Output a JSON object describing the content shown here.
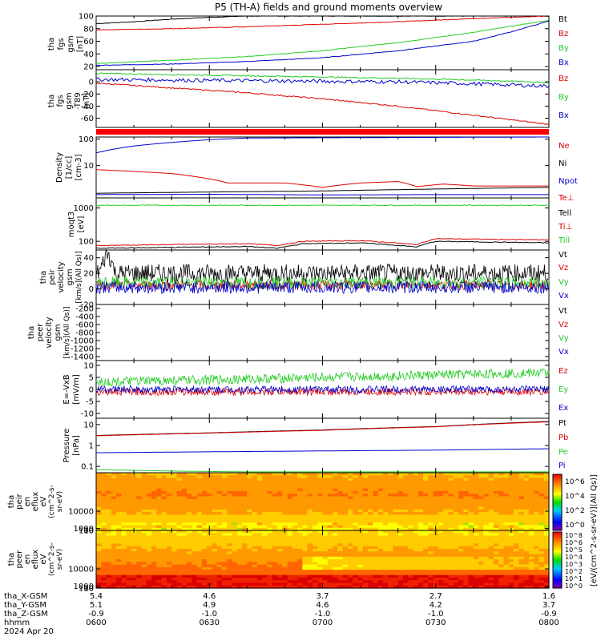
{
  "title": "P5 (TH-A) fields and ground moments overview",
  "colors": {
    "black": "#000000",
    "red": "#dd0000",
    "green": "#22cc22",
    "blue": "#0000cc",
    "status_bar": "#ff0000"
  },
  "chart_data": [
    {
      "type": "line",
      "panel": "fgs_gsm",
      "ylabel": [
        "tha",
        "fgs",
        "gsm",
        "[nT]"
      ],
      "ylim": [
        15,
        100
      ],
      "yticks": [
        20,
        40,
        60,
        80,
        100
      ],
      "series": [
        {
          "name": "Bt",
          "color": "#000000",
          "x": [
            0,
            10,
            20,
            30,
            40,
            48,
            60,
            120
          ],
          "y": [
            88,
            91,
            95,
            98,
            100,
            100,
            100,
            100
          ]
        },
        {
          "name": "Bz",
          "color": "#dd0000",
          "x": [
            0,
            20,
            40,
            60,
            80,
            100,
            120
          ],
          "y": [
            78,
            80,
            83,
            87,
            91,
            96,
            100
          ]
        },
        {
          "name": "By",
          "color": "#22cc22",
          "x": [
            0,
            20,
            40,
            60,
            80,
            100,
            110,
            120
          ],
          "y": [
            25,
            30,
            36,
            45,
            58,
            74,
            84,
            93
          ]
        },
        {
          "name": "Bx",
          "color": "#0000cc",
          "x": [
            0,
            20,
            40,
            60,
            80,
            100,
            110,
            120
          ],
          "y": [
            22,
            24,
            28,
            34,
            45,
            60,
            75,
            92
          ]
        }
      ]
    },
    {
      "type": "line",
      "panel": "fgs_gsm_dif",
      "ylabel": [
        "tha",
        "fgs",
        "gsm",
        "-T89",
        "[nT]"
      ],
      "ylim": [
        -75,
        20
      ],
      "yticks": [
        -60,
        -40,
        -20,
        0
      ],
      "series": [
        {
          "name": "Bz",
          "color": "#dd0000",
          "x": [
            0,
            20,
            40,
            60,
            80,
            100,
            120
          ],
          "y": [
            -2,
            -10,
            -18,
            -28,
            -40,
            -55,
            -70
          ]
        },
        {
          "name": "By",
          "color": "#22cc22",
          "x": [
            0,
            20,
            40,
            60,
            80,
            100,
            120
          ],
          "y": [
            14,
            12,
            10,
            8,
            6,
            3,
            -1
          ]
        },
        {
          "name": "Bx",
          "color": "#0000cc",
          "x": [
            0,
            20,
            40,
            60,
            80,
            100,
            120
          ],
          "y": [
            4,
            3,
            2,
            1,
            0,
            -3,
            -7
          ]
        }
      ]
    },
    {
      "type": "line",
      "panel": "density",
      "scale": "log",
      "ylabel": [
        "Density",
        "[1/cc]",
        "[cm-3]"
      ],
      "ylim": [
        0.6,
        120
      ],
      "yticks": [
        10,
        100
      ],
      "series": [
        {
          "name": "Ne",
          "color": "#dd0000",
          "x": [
            0,
            10,
            20,
            28,
            35,
            50,
            60,
            70,
            80,
            85,
            92,
            100,
            120
          ],
          "y": [
            7,
            6,
            5,
            3.5,
            2.2,
            2.2,
            1.5,
            2.2,
            2.5,
            1.6,
            2.0,
            1.7,
            1.7
          ]
        },
        {
          "name": "Ni",
          "color": "#000000",
          "x": [
            0,
            30,
            60,
            90,
            120
          ],
          "y": [
            0.9,
            1.0,
            1.1,
            1.3,
            1.5
          ]
        },
        {
          "name": "Npot",
          "color": "#0000cc",
          "x": [
            0,
            10,
            20,
            30,
            40,
            120
          ],
          "y": [
            30,
            55,
            75,
            95,
            110,
            120
          ]
        },
        {
          "name": "Te⊥",
          "color": "#0000cc",
          "x": [
            0,
            30,
            60,
            90,
            120
          ],
          "y": [
            0.8,
            0.82,
            0.78,
            0.8,
            0.8
          ]
        }
      ]
    },
    {
      "type": "line",
      "panel": "temperature",
      "scale": "log",
      "ylabel": [
        "moqt3",
        "[eV]"
      ],
      "ylim": [
        55,
        2000
      ],
      "yticks": [
        100,
        1000
      ],
      "series": [
        {
          "name": "Tell",
          "color": "#22cc22",
          "x": [
            0,
            40,
            80,
            120
          ],
          "y": [
            1200,
            1200,
            1200,
            1200
          ]
        },
        {
          "name": "Ti⊥",
          "color": "#dd0000",
          "x": [
            0,
            20,
            40,
            48,
            55,
            70,
            85,
            90,
            105,
            120
          ],
          "y": [
            75,
            80,
            85,
            75,
            100,
            105,
            80,
            120,
            115,
            110
          ]
        },
        {
          "name": "Till",
          "color": "#000000",
          "x": [
            0,
            20,
            40,
            48,
            55,
            70,
            85,
            90,
            105,
            120
          ],
          "y": [
            62,
            66,
            70,
            62,
            85,
            90,
            68,
            100,
            95,
            90
          ]
        }
      ]
    },
    {
      "type": "line",
      "panel": "peir_velocity",
      "ylabel": [
        "tha",
        "peir",
        "velocity",
        "gsm",
        "[km/s](All Qs)]"
      ],
      "ylim": [
        -20,
        50
      ],
      "yticks": [
        -20,
        0,
        20,
        40
      ],
      "series": [
        {
          "name": "Vt",
          "color": "#000000",
          "mean": 20,
          "amp": 12
        },
        {
          "name": "Vz",
          "color": "#dd0000",
          "mean": 5,
          "amp": 6
        },
        {
          "name": "Vy",
          "color": "#22cc22",
          "mean": 8,
          "amp": 8
        },
        {
          "name": "Vx",
          "color": "#0000cc",
          "mean": 2,
          "amp": 8
        }
      ]
    },
    {
      "type": "line",
      "panel": "peer_velocity",
      "ylabel": [
        "tha",
        "peer",
        "velocity",
        "gsm",
        "[km/s](All Qs)]"
      ],
      "ylim": [
        -1500,
        -100
      ],
      "yticks": [
        -200,
        -400,
        -600,
        -800,
        -1000,
        -1200,
        -1400
      ],
      "series": [
        {
          "name": "Vt",
          "color": "#000000"
        },
        {
          "name": "Vz",
          "color": "#dd0000"
        },
        {
          "name": "Vy",
          "color": "#22cc22"
        },
        {
          "name": "Vx",
          "color": "#0000cc"
        }
      ]
    },
    {
      "type": "line",
      "panel": "efield",
      "ylabel": [
        "E=-VxB",
        "[mV/m]"
      ],
      "ylim": [
        -12,
        12
      ],
      "yticks": [
        -10,
        -5,
        0,
        5,
        10
      ],
      "series": [
        {
          "name": "Ez",
          "color": "#dd0000",
          "mean": -1,
          "amp": 1.5
        },
        {
          "name": "Ey",
          "color": "#22cc22",
          "mean": 3,
          "amp": 2
        },
        {
          "name": "Ex",
          "color": "#0000cc",
          "mean": 0,
          "amp": 1.5
        }
      ]
    },
    {
      "type": "line",
      "panel": "pressure",
      "scale": "log",
      "ylabel": [
        "Pressure",
        "[nPa]"
      ],
      "ylim": [
        0.05,
        20
      ],
      "yticks": [
        0.1,
        1.0,
        10.0
      ],
      "series": [
        {
          "name": "Pt",
          "color": "#000000",
          "x": [
            0,
            30,
            60,
            90,
            120
          ],
          "y": [
            3,
            4,
            5.5,
            8,
            14
          ]
        },
        {
          "name": "Pb",
          "color": "#dd0000",
          "x": [
            0,
            30,
            60,
            90,
            120
          ],
          "y": [
            2.9,
            3.9,
            5.3,
            7.8,
            13.5
          ]
        },
        {
          "name": "Pe",
          "color": "#22cc22",
          "x": [
            0,
            10,
            20,
            40,
            60,
            120
          ],
          "y": [
            0.07,
            0.065,
            0.06,
            0.055,
            0.055,
            0.055
          ]
        },
        {
          "name": "Pi",
          "color": "#0000cc",
          "x": [
            0,
            30,
            60,
            90,
            120
          ],
          "y": [
            0.45,
            0.5,
            0.55,
            0.6,
            0.7
          ]
        }
      ]
    },
    {
      "type": "heatmap",
      "panel": "peir_eflux",
      "ylabel": [
        "tha",
        "peir",
        "en",
        "eflux",
        "eV",
        "(cm^2-s-",
        "sr-eV)"
      ],
      "ylim": [
        6,
        30000
      ],
      "yticks": [
        10,
        100,
        1000,
        10000
      ]
    },
    {
      "type": "heatmap",
      "panel": "peer_eflux",
      "ylabel": [
        "tha",
        "peer",
        "en",
        "eflux",
        "eV",
        "(cm^2-s-",
        "sr-eV)"
      ],
      "ylim": [
        6,
        30000
      ],
      "yticks": [
        10,
        100,
        1000,
        10000
      ]
    }
  ],
  "colorbar": {
    "label": "[eV/(cm^2-s-sr-eV)](All Qs)]",
    "top_labels": [
      "10^6",
      "10^4",
      "10^2",
      "10^0"
    ],
    "bottom_labels": [
      "10^8",
      "10^6",
      "10^5",
      "10^4",
      "10^3",
      "10^2",
      "10^1",
      "10^0"
    ]
  },
  "xaxis": {
    "rows": [
      {
        "label": "tha_X-GSM",
        "values": [
          "5.4",
          "4.6",
          "3.7",
          "2.7",
          "1.6"
        ]
      },
      {
        "label": "tha_Y-GSM",
        "values": [
          "5.1",
          "4.9",
          "4.6",
          "4.2",
          "3.7"
        ]
      },
      {
        "label": "tha_Z-GSM",
        "values": [
          "-0.9",
          "-1.0",
          "-1.0",
          "-1.0",
          "-0.9"
        ]
      },
      {
        "label": "hhmm",
        "values": [
          "0600",
          "0630",
          "0700",
          "0730",
          "0800"
        ]
      }
    ],
    "date": "2024 Apr 20"
  }
}
